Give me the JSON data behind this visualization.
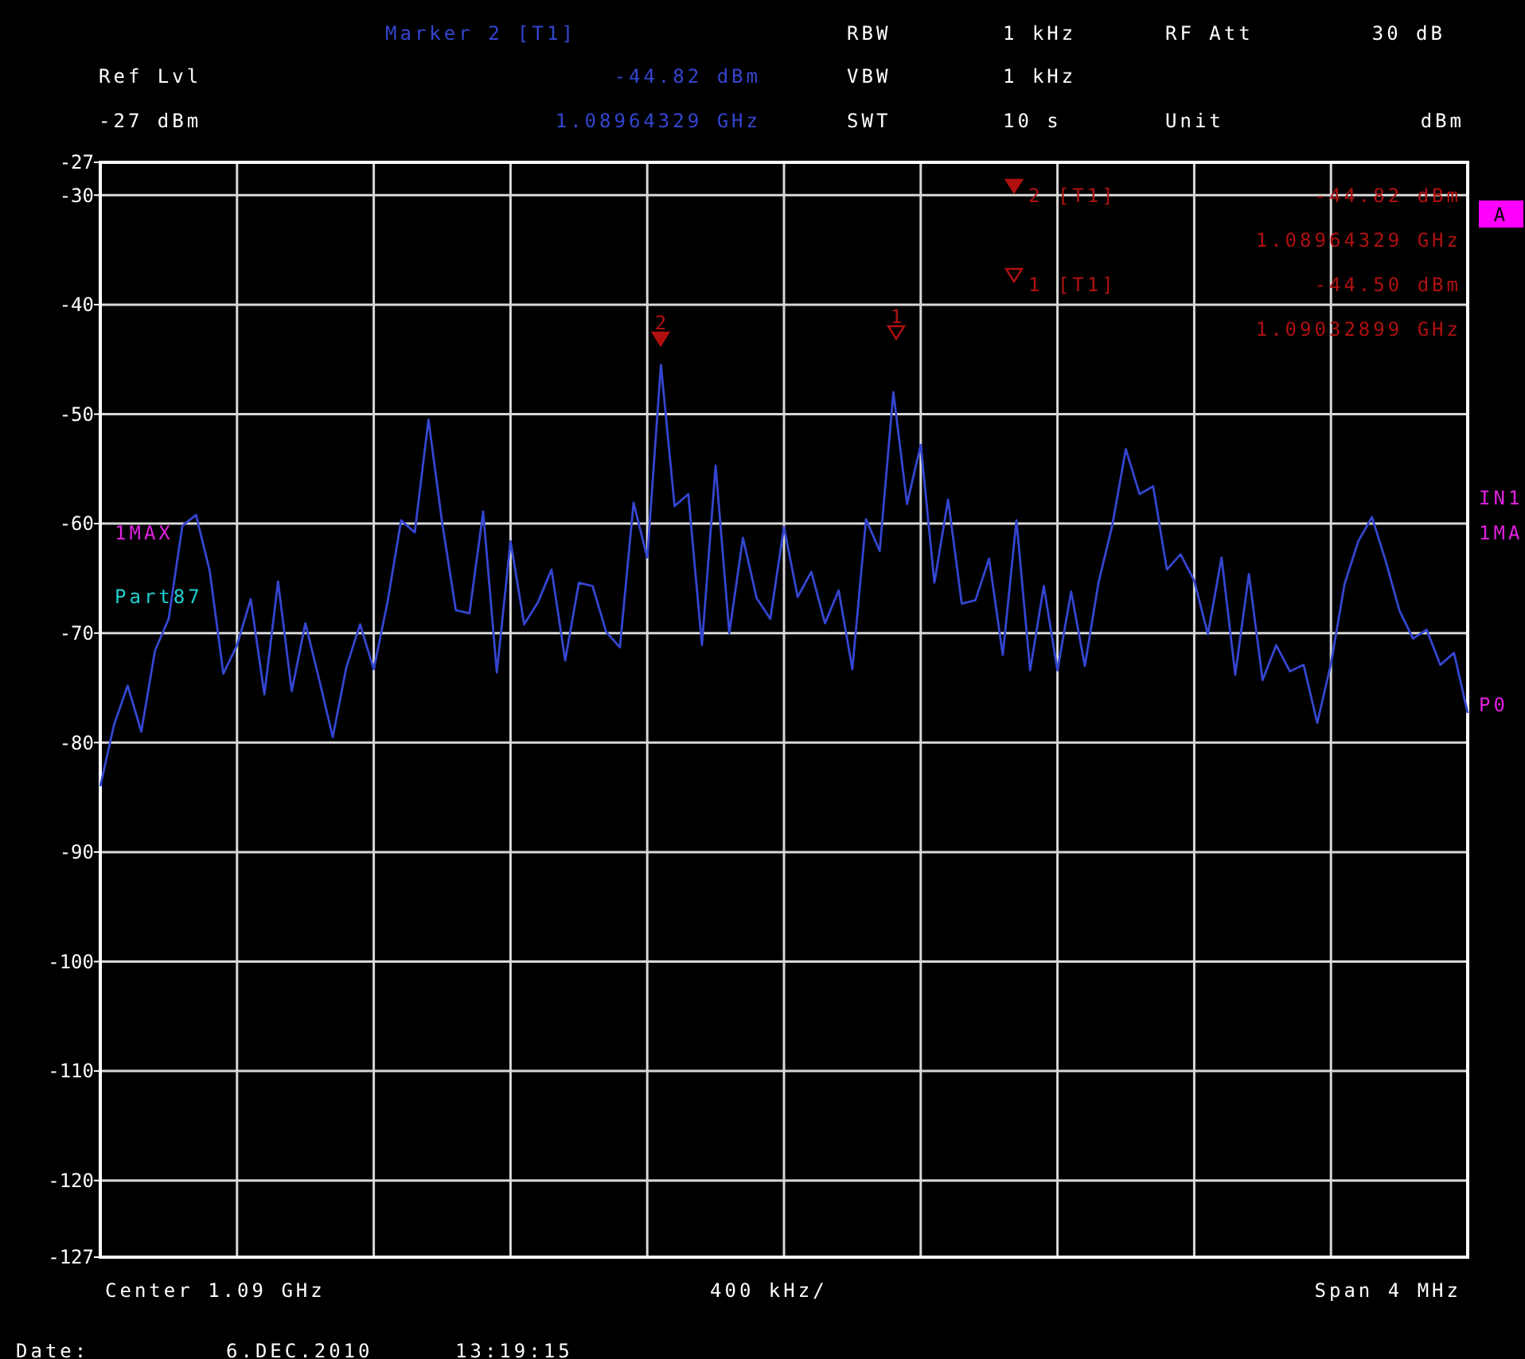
{
  "chart_data": {
    "type": "line",
    "categories": [
      null,
      null,
      null,
      null,
      null,
      null,
      null,
      null,
      null,
      null,
      null,
      null,
      null,
      null,
      null,
      null,
      null,
      null,
      null,
      null,
      null,
      null,
      null,
      null,
      null,
      null,
      null,
      null,
      null,
      null,
      null,
      null,
      null,
      null,
      null,
      null,
      null,
      null,
      null,
      null,
      null,
      null,
      null,
      null,
      null,
      null,
      null,
      null,
      null,
      null,
      null,
      null,
      null,
      null,
      null,
      null,
      null,
      null,
      null,
      null,
      null,
      null,
      null,
      null,
      null,
      null,
      null,
      null,
      null,
      null,
      null,
      null,
      null,
      null,
      null,
      null,
      null,
      null,
      null,
      null,
      null,
      null,
      null,
      null,
      null,
      null,
      null,
      null,
      null,
      null,
      null,
      null,
      null,
      null,
      null,
      null,
      null,
      null,
      null,
      null,
      null
    ],
    "ylim": [
      -127,
      -27
    ],
    "yticks": [
      -27,
      -30,
      -40,
      -50,
      -60,
      -70,
      -80,
      -90,
      -100,
      -110,
      -120,
      -127
    ],
    "grid": true,
    "tick_labels": "y",
    "series": [
      {
        "color": "#3446d0",
        "values": [
          -84.0,
          -78.4,
          -74.8,
          -79.0,
          -71.6,
          -68.7,
          -60.2,
          -59.2,
          -64.3,
          -73.7,
          -71.1,
          -66.9,
          -75.6,
          -65.3,
          -75.3,
          -69.1,
          -74.2,
          -79.5,
          -73.1,
          -69.2,
          -73.3,
          -67.2,
          -59.7,
          -60.8,
          -50.5,
          -59.9,
          -67.9,
          -68.2,
          -58.9,
          -73.6,
          -61.6,
          -69.2,
          -67.2,
          -64.2,
          -72.5,
          -65.4,
          -65.7,
          -69.9,
          -71.3,
          -58.1,
          -63.1,
          -45.5,
          -58.4,
          -57.3,
          -71.1,
          -54.7,
          -70.0,
          -61.3,
          -66.8,
          -68.7,
          -60.3,
          -66.7,
          -64.4,
          -69.1,
          -66.1,
          -73.3,
          -59.6,
          -62.5,
          -48.0,
          -58.2,
          -52.8,
          -65.4,
          -57.8,
          -67.3,
          -67.0,
          -63.2,
          -72.0,
          -59.7,
          -73.4,
          -65.7,
          -73.4,
          -66.2,
          -73.0,
          -65.4,
          -60.2,
          -53.2,
          -57.3,
          -56.6,
          -64.2,
          -62.8,
          -65.2,
          -70.1,
          -63.1,
          -73.8,
          -64.6,
          -74.3,
          -71.1,
          -73.5,
          -72.9,
          -78.2,
          -72.8,
          -65.5,
          -61.6,
          -59.4,
          -63.4,
          -67.9,
          -70.5,
          -69.7,
          -72.9,
          -71.8,
          -77.3
        ]
      }
    ],
    "annotations": [
      "2",
      "1",
      "Marker 2 [T1]",
      "-44.82 dBm",
      "1.08964329 GHz",
      "Ref Lvl",
      "-27 dBm",
      "RBW",
      "1 kHz",
      "VBW",
      "1 kHz",
      "SWT",
      "10 s",
      "RF Att",
      "30 dB",
      "Unit",
      "dBm",
      "2 [T1]",
      "-44.82 dBm",
      "1.08964329 GHz",
      "1 [T1]",
      "-44.50 dBm",
      "1.09032899 GHz",
      "A",
      "IN1",
      "1MAX",
      "1MA",
      "Part87",
      "P0",
      "Center 1.09 GHz",
      "400 kHz/",
      "Span 4 MHz",
      "Date:",
      "6.DEC.2010",
      "13:19:15"
    ]
  }
}
